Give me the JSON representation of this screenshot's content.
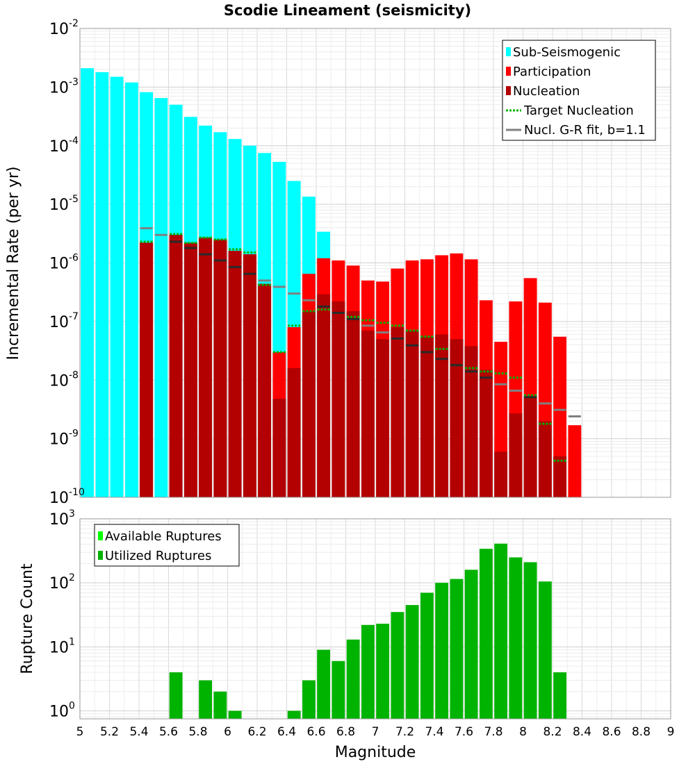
{
  "chart_data": [
    {
      "type": "bar",
      "title": "Scodie Lineament (seismicity)",
      "xlabel": "Magnitude",
      "ylabel": "Incremental Rate (per yr)",
      "yscale": "log",
      "xlim": [
        5,
        9
      ],
      "ylim": [
        1e-10,
        0.01
      ],
      "grid": true,
      "legend_position": "top-right",
      "x_ticks": [
        "5",
        "5.2",
        "5.4",
        "5.6",
        "5.8",
        "6",
        "6.2",
        "6.4",
        "6.6",
        "6.8",
        "7",
        "7.2",
        "7.4",
        "7.6",
        "7.8",
        "8",
        "8.2",
        "8.4",
        "8.6",
        "8.8",
        "9"
      ],
      "y_ticks": [
        {
          "base": "10",
          "exp": "-10"
        },
        {
          "base": "10",
          "exp": "-9"
        },
        {
          "base": "10",
          "exp": "-8"
        },
        {
          "base": "10",
          "exp": "-7"
        },
        {
          "base": "10",
          "exp": "-6"
        },
        {
          "base": "10",
          "exp": "-5"
        },
        {
          "base": "10",
          "exp": "-4"
        },
        {
          "base": "10",
          "exp": "-3"
        },
        {
          "base": "10",
          "exp": "-2"
        }
      ],
      "legend": [
        {
          "label": "Sub-Seismogenic",
          "color": "#00ffff",
          "kind": "box"
        },
        {
          "label": "Participation",
          "color": "#ff0000",
          "kind": "box"
        },
        {
          "label": "Nucleation",
          "color": "#b30000",
          "kind": "box"
        },
        {
          "label": "Target Nucleation",
          "color": "#00b300",
          "kind": "dotted"
        },
        {
          "label": "Nucl. G-R fit, b=1.1",
          "color": "#808080",
          "kind": "line"
        }
      ],
      "x": [
        5.05,
        5.15,
        5.25,
        5.35,
        5.45,
        5.55,
        5.65,
        5.75,
        5.85,
        5.95,
        6.05,
        6.15,
        6.25,
        6.35,
        6.45,
        6.55,
        6.65,
        6.75,
        6.85,
        6.95,
        7.05,
        7.15,
        7.25,
        7.35,
        7.45,
        7.55,
        7.65,
        7.75,
        7.85,
        7.95,
        8.05,
        8.15,
        8.25,
        8.35,
        8.45
      ],
      "series": [
        {
          "name": "Sub-Seismogenic",
          "color": "#00ffff",
          "values": [
            0.0021,
            0.0018,
            0.0015,
            0.0012,
            0.00082,
            0.00065,
            0.0005,
            0.00031,
            0.00022,
            0.00017,
            0.00013,
            0.0001,
            7.5e-05,
            5.3e-05,
            2.5e-05,
            1.35e-05,
            3.4e-06,
            null,
            null,
            null,
            null,
            null,
            null,
            null,
            null,
            null,
            null,
            null,
            null,
            null,
            null,
            null,
            null,
            null,
            null
          ]
        },
        {
          "name": "Participation",
          "color": "#ff0000",
          "values": [
            null,
            null,
            null,
            null,
            2.2e-06,
            null,
            3e-06,
            2.2e-06,
            2.7e-06,
            2.5e-06,
            1.6e-06,
            1.4e-06,
            4.4e-07,
            3e-08,
            8e-08,
            6.5e-07,
            1.2e-06,
            1.1e-06,
            9e-07,
            5e-07,
            4.8e-07,
            8e-07,
            1.1e-06,
            1.15e-06,
            1.35e-06,
            1.45e-06,
            1.15e-06,
            2.3e-07,
            4.5e-08,
            2.2e-07,
            5.5e-07,
            2.1e-07,
            5.5e-08,
            1.7e-09,
            null
          ]
        },
        {
          "name": "Nucleation",
          "color": "#b30000",
          "values": [
            null,
            null,
            null,
            null,
            2.2e-06,
            null,
            3e-06,
            2.2e-06,
            2.7e-06,
            2.5e-06,
            1.6e-06,
            1.4e-06,
            4.4e-07,
            4.8e-09,
            1.6e-08,
            1.5e-07,
            2.9e-07,
            2.2e-07,
            1.5e-07,
            7e-08,
            5e-08,
            8e-08,
            7e-08,
            5.5e-08,
            6e-08,
            5e-08,
            3.8e-08,
            1.5e-08,
            6e-10,
            2.7e-09,
            5.3e-09,
            2e-09,
            5e-10,
            null,
            null
          ]
        },
        {
          "name": "Target Nucleation",
          "color": "#00b300",
          "values": [
            null,
            null,
            null,
            null,
            2.3e-06,
            null,
            3.1e-06,
            2.2e-06,
            2.7e-06,
            2.5e-06,
            1.7e-06,
            1.5e-06,
            4.2e-07,
            3e-08,
            8.5e-08,
            1.5e-07,
            1.6e-07,
            1.4e-07,
            1.2e-07,
            1.05e-07,
            9.5e-08,
            8.5e-08,
            7e-08,
            5.5e-08,
            3.4e-08,
            1.8e-08,
            1.6e-08,
            1.4e-08,
            1.3e-08,
            1.1e-08,
            5.5e-09,
            1.8e-09,
            4.2e-10,
            null,
            null
          ]
        },
        {
          "name": "Nucl. G-R fit, b=1.1",
          "color": "#808080",
          "values": [
            null,
            null,
            null,
            null,
            3.9e-06,
            3e-06,
            2.3e-06,
            1.8e-06,
            1.4e-06,
            1.1e-06,
            8.5e-07,
            6.5e-07,
            5e-07,
            3.9e-07,
            3e-07,
            2.3e-07,
            1.8e-07,
            1.4e-07,
            1.1e-07,
            8.5e-08,
            6.5e-08,
            5.1e-08,
            3.9e-08,
            3e-08,
            2.3e-08,
            1.8e-08,
            1.4e-08,
            1.1e-08,
            8.5e-09,
            6.6e-09,
            5.1e-09,
            4e-09,
            3.1e-09,
            2.4e-09,
            null
          ]
        }
      ]
    },
    {
      "type": "bar",
      "title": "",
      "xlabel": "Magnitude",
      "ylabel": "Rupture Count",
      "yscale": "log",
      "xlim": [
        5,
        9
      ],
      "ylim": [
        0.75,
        1000
      ],
      "grid": true,
      "legend_position": "top-left",
      "x_ticks": [
        "5",
        "5.2",
        "5.4",
        "5.6",
        "5.8",
        "6",
        "6.2",
        "6.4",
        "6.6",
        "6.8",
        "7",
        "7.2",
        "7.4",
        "7.6",
        "7.8",
        "8",
        "8.2",
        "8.4",
        "8.6",
        "8.8",
        "9"
      ],
      "y_ticks": [
        {
          "base": "10",
          "exp": "0"
        },
        {
          "base": "10",
          "exp": "1"
        },
        {
          "base": "10",
          "exp": "2"
        },
        {
          "base": "10",
          "exp": "3"
        }
      ],
      "legend": [
        {
          "label": "Available Ruptures",
          "color": "#00ff00",
          "kind": "box"
        },
        {
          "label": "Utilized Ruptures",
          "color": "#00b300",
          "kind": "box"
        }
      ],
      "x": [
        5.05,
        5.15,
        5.25,
        5.35,
        5.45,
        5.55,
        5.65,
        5.75,
        5.85,
        5.95,
        6.05,
        6.15,
        6.25,
        6.35,
        6.45,
        6.55,
        6.65,
        6.75,
        6.85,
        6.95,
        7.05,
        7.15,
        7.25,
        7.35,
        7.45,
        7.55,
        7.65,
        7.75,
        7.85,
        7.95,
        8.05,
        8.15,
        8.25,
        8.35,
        8.45
      ],
      "series": [
        {
          "name": "Utilized Ruptures",
          "color": "#00b300",
          "values": [
            null,
            null,
            null,
            null,
            null,
            null,
            4,
            null,
            3,
            2,
            1,
            null,
            null,
            null,
            1,
            3,
            9,
            6,
            13,
            22,
            23,
            35,
            45,
            70,
            100,
            115,
            160,
            340,
            410,
            250,
            210,
            105,
            4,
            null,
            null
          ]
        }
      ]
    }
  ]
}
